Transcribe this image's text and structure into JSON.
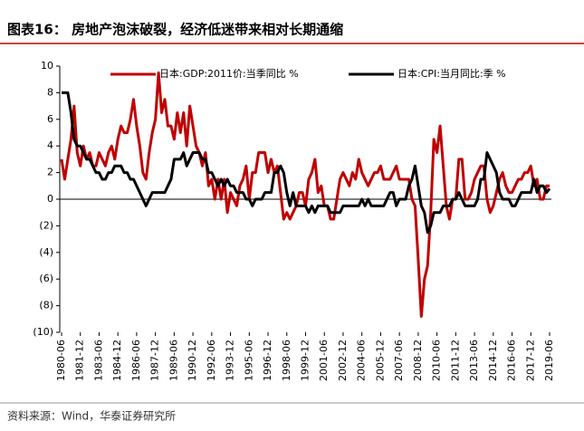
{
  "chart_data": {
    "type": "line",
    "title": "图表16：  房地产泡沫破裂，经济低迷带来相对长期通缩",
    "source": "资料来源：Wind，华泰证券研究所",
    "categories": [
      "1980-06",
      null,
      null,
      null,
      null,
      null,
      "1981-12",
      null,
      null,
      null,
      null,
      null,
      "1983-06",
      null,
      null,
      null,
      null,
      null,
      "1984-12",
      null,
      null,
      null,
      null,
      null,
      "1986-06",
      null,
      null,
      null,
      null,
      null,
      "1987-12",
      null,
      null,
      null,
      null,
      null,
      "1989-06",
      null,
      null,
      null,
      null,
      null,
      "1990-12",
      null,
      null,
      null,
      null,
      null,
      "1992-06",
      null,
      null,
      null,
      null,
      null,
      "1993-12",
      null,
      null,
      null,
      null,
      null,
      "1995-06",
      null,
      null,
      null,
      null,
      null,
      "1996-12",
      null,
      null,
      null,
      null,
      null,
      "1998-06",
      null,
      null,
      null,
      null,
      null,
      "1999-12",
      null,
      null,
      null,
      null,
      null,
      "2001-06",
      null,
      null,
      null,
      null,
      null,
      "2002-12",
      null,
      null,
      null,
      null,
      null,
      "2004-06",
      null,
      null,
      null,
      null,
      null,
      "2005-12",
      null,
      null,
      null,
      null,
      null,
      "2007-06",
      null,
      null,
      null,
      null,
      null,
      "2008-12",
      null,
      null,
      null,
      null,
      null,
      "2010-06",
      null,
      null,
      null,
      null,
      null,
      "2011-12",
      null,
      null,
      null,
      null,
      null,
      "2013-06",
      null,
      null,
      null,
      null,
      null,
      "2014-12",
      null,
      null,
      null,
      null,
      null,
      "2016-06",
      null,
      null,
      null,
      null,
      null,
      "2017-12",
      null,
      null,
      null,
      null,
      null,
      "2019-06"
    ],
    "series": [
      {
        "name": "日本:GDP:2011价:当季同比 %",
        "color": "#c00000",
        "values": [
          3,
          1.5,
          3,
          4.5,
          7,
          3.5,
          2.5,
          4,
          3,
          3.5,
          2.5,
          2.5,
          3.5,
          3,
          2.5,
          3.5,
          4,
          3,
          4.5,
          5.5,
          5,
          5,
          6,
          7.5,
          5.5,
          4,
          2,
          1.5,
          3.5,
          5,
          6,
          9.5,
          6.5,
          7.5,
          5.5,
          5.5,
          4.5,
          6.5,
          5,
          6.5,
          4,
          7,
          5.5,
          4,
          3.5,
          2.5,
          3.5,
          1,
          1.5,
          0,
          1.5,
          0,
          1.5,
          -1,
          0.5,
          0,
          -0.5,
          1,
          1.5,
          2.5,
          0,
          2,
          2,
          3.5,
          3.5,
          3.5,
          2,
          3,
          2,
          2.5,
          0.5,
          -1.5,
          -1,
          -1.5,
          -1,
          -0.5,
          0.5,
          0.5,
          -0.5,
          1.5,
          2,
          3,
          0.5,
          1,
          -0.5,
          -0.5,
          -1.5,
          -1.5,
          0,
          1.5,
          2,
          1.5,
          1,
          2,
          1.5,
          3,
          2,
          1.5,
          1,
          1.5,
          2,
          2,
          2.5,
          1.5,
          1.5,
          1.5,
          2,
          2.5,
          1.5,
          1.5,
          1.5,
          1.5,
          0,
          -0.5,
          -4.5,
          -8.8,
          -6,
          -5,
          -1,
          4.5,
          3.5,
          5.5,
          2.5,
          -0.5,
          -1.5,
          0,
          0,
          3,
          3,
          0,
          0,
          0.5,
          1.5,
          2,
          2.5,
          2.5,
          0,
          -1,
          -0.5,
          0.5,
          1.5,
          2,
          1,
          0.5,
          0.5,
          1,
          1.5,
          1.5,
          2,
          2,
          2.5,
          1,
          1.5,
          0,
          0,
          1,
          1
        ]
      },
      {
        "name": "日本:CPI:当月同比:季 %",
        "color": "#000000",
        "values": [
          8,
          8,
          8,
          6.5,
          4.5,
          4,
          4,
          3.5,
          3,
          3,
          2.5,
          2,
          2,
          1.5,
          1.5,
          2,
          2,
          2.5,
          2.5,
          2.5,
          2,
          2,
          1.5,
          1.5,
          1,
          0.5,
          0,
          -0.5,
          0,
          0.5,
          0.5,
          0.5,
          0.5,
          0.5,
          1,
          1.5,
          3,
          3,
          3,
          3.5,
          2.5,
          3,
          3.5,
          3.5,
          3.5,
          3,
          3,
          2,
          2,
          1.5,
          1,
          1.5,
          1,
          1.5,
          1,
          1,
          0.5,
          0.5,
          0.5,
          0,
          0,
          -0.5,
          0,
          0,
          0,
          0.5,
          0.5,
          0.5,
          2,
          2,
          2.5,
          2,
          0.5,
          -0.5,
          0.5,
          -0.5,
          -0.5,
          -0.5,
          -0.5,
          -1,
          -0.5,
          -1,
          -0.5,
          -0.5,
          -0.5,
          -0.5,
          -1,
          -1,
          -1,
          -1,
          -0.5,
          -0.5,
          -0.5,
          -0.5,
          -0.5,
          -0.5,
          0,
          -0.5,
          0,
          -0.5,
          -0.5,
          -0.5,
          -0.5,
          -0.5,
          0,
          0.5,
          0.5,
          -0.5,
          0,
          0,
          0,
          1,
          1.5,
          2.5,
          1,
          -0.5,
          -1,
          -2.5,
          -2,
          -1,
          -1,
          -1,
          -0.5,
          -0.5,
          -0.5,
          0,
          0,
          0.5,
          0,
          -0.5,
          -0.5,
          -0.5,
          -0.5,
          0,
          1.5,
          1.5,
          3.5,
          3,
          2.5,
          2,
          0.5,
          0,
          0,
          0,
          -0.5,
          -0.5,
          0,
          0.5,
          0.5,
          0.5,
          0.5,
          1.5,
          0.5,
          1,
          1,
          0.5,
          0.8
        ]
      }
    ],
    "ylim": [
      -10,
      10
    ],
    "yticks": [
      {
        "value": -10,
        "label": "(10)"
      },
      {
        "value": -8,
        "label": "(8)"
      },
      {
        "value": -6,
        "label": "(6)"
      },
      {
        "value": -4,
        "label": "(4)"
      },
      {
        "value": -2,
        "label": "(2)"
      },
      0,
      2,
      4,
      6,
      8,
      10
    ],
    "legend": "top"
  }
}
